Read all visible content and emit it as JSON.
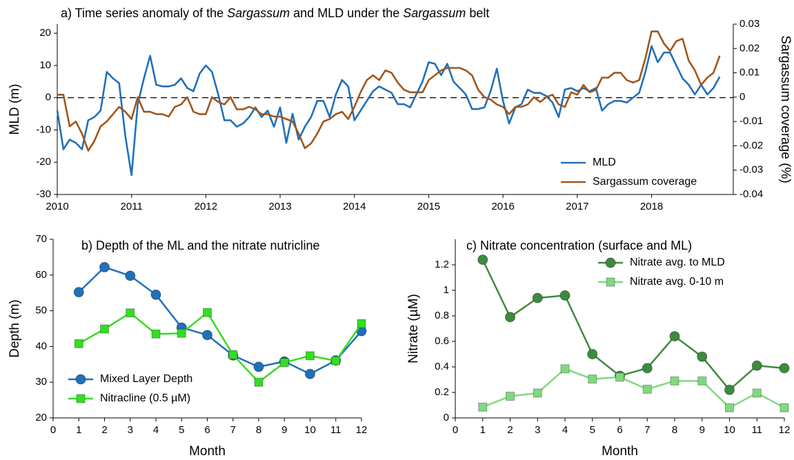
{
  "chart_data": [
    {
      "type": "line",
      "title": [
        "a) Time series anomaly of the ",
        "Sargassum",
        " and MLD under the ",
        "Sargassum",
        " belt"
      ],
      "title_italic": [
        false,
        true,
        false,
        true,
        false
      ],
      "ylabel": "MLD (m)",
      "y2label": "Sargassum coverage (%)",
      "x": [
        2010,
        2010.083,
        2010.167,
        2010.25,
        2010.333,
        2010.417,
        2010.5,
        2010.583,
        2010.667,
        2010.75,
        2010.833,
        2010.917,
        2011,
        2011.083,
        2011.167,
        2011.25,
        2011.333,
        2011.417,
        2011.5,
        2011.583,
        2011.667,
        2011.75,
        2011.833,
        2011.917,
        2012,
        2012.083,
        2012.167,
        2012.25,
        2012.333,
        2012.417,
        2012.5,
        2012.583,
        2012.667,
        2012.75,
        2012.833,
        2012.917,
        2013,
        2013.083,
        2013.167,
        2013.25,
        2013.333,
        2013.417,
        2013.5,
        2013.583,
        2013.667,
        2013.75,
        2013.833,
        2013.917,
        2014,
        2014.083,
        2014.167,
        2014.25,
        2014.333,
        2014.417,
        2014.5,
        2014.583,
        2014.667,
        2014.75,
        2014.833,
        2014.917,
        2015,
        2015.083,
        2015.167,
        2015.25,
        2015.333,
        2015.417,
        2015.5,
        2015.583,
        2015.667,
        2015.75,
        2015.833,
        2015.917,
        2016,
        2016.083,
        2016.167,
        2016.25,
        2016.333,
        2016.417,
        2016.5,
        2016.583,
        2016.667,
        2016.75,
        2016.833,
        2016.917,
        2017,
        2017.083,
        2017.167,
        2017.25,
        2017.333,
        2017.417,
        2017.5,
        2017.583,
        2017.667,
        2017.75,
        2017.833,
        2017.917,
        2018,
        2018.083,
        2018.167,
        2018.25,
        2018.333,
        2018.417,
        2018.5,
        2018.583,
        2018.667,
        2018.75,
        2018.833,
        2018.917
      ],
      "series": [
        {
          "name": "MLD",
          "color": "#1f70bb",
          "values": [
            -4,
            -16,
            -13,
            -14,
            -16,
            -7,
            -6,
            -4,
            8,
            6,
            4.5,
            -12,
            -24,
            -2,
            6,
            13,
            4,
            3.5,
            3.5,
            4,
            6,
            3,
            2,
            7.5,
            10,
            8,
            1,
            -7,
            -7,
            -9,
            -8,
            -6,
            -3,
            -6,
            -4,
            -9,
            -3,
            -14,
            -5,
            -13,
            -9,
            -6,
            -1,
            -1,
            -6,
            1,
            5.5,
            3.5,
            -7,
            -4,
            -1,
            2,
            3.5,
            2.5,
            1.5,
            -2,
            -2,
            -3,
            1,
            5,
            11,
            10.5,
            7,
            10.5,
            5,
            3,
            1,
            -3.5,
            -3.5,
            -3,
            2,
            9,
            -1,
            -8,
            -3,
            -2,
            2.5,
            1.5,
            1.5,
            0.5,
            -1.5,
            -6,
            2.5,
            3,
            2,
            3,
            2,
            3,
            -4,
            -2,
            -1,
            -1,
            -1.5,
            0,
            1.5,
            8,
            16,
            11,
            14,
            14,
            10,
            6,
            4,
            1,
            4,
            1,
            3,
            6.5
          ]
        },
        {
          "name": "Sargassum coverage",
          "color": "#a0561c",
          "axis": "y2",
          "values": [
            0.001,
            0.001,
            -0.012,
            -0.01,
            -0.015,
            -0.022,
            -0.018,
            -0.012,
            -0.01,
            -0.007,
            -0.004,
            -0.006,
            -0.009,
            0,
            -0.006,
            -0.006,
            -0.007,
            -0.007,
            -0.008,
            -0.004,
            -0.003,
            0,
            -0.006,
            -0.007,
            -0.007,
            0,
            -0.002,
            -0.003,
            0,
            -0.005,
            -0.005,
            -0.004,
            -0.005,
            -0.007,
            -0.007,
            -0.008,
            -0.008,
            -0.009,
            -0.01,
            -0.015,
            -0.021,
            -0.019,
            -0.015,
            -0.01,
            -0.009,
            -0.007,
            -0.006,
            -0.009,
            -0.004,
            0.002,
            0.007,
            0.009,
            0.007,
            0.011,
            0.01,
            0.006,
            0.003,
            0.002,
            0.002,
            0.002,
            0.007,
            0.009,
            0.011,
            0.012,
            0.012,
            0.012,
            0.011,
            0.009,
            0.003,
            0,
            -0.001,
            -0.003,
            -0.004,
            -0.007,
            -0.004,
            -0.004,
            -0.003,
            0,
            -0.002,
            0,
            0.001,
            -0.003,
            -0.004,
            0.002,
            0.001,
            0.005,
            0.002,
            0.003,
            0.008,
            0.008,
            0.01,
            0.01,
            0.007,
            0.006,
            0.007,
            0.016,
            0.027,
            0.027,
            0.022,
            0.019,
            0.023,
            0.024,
            0.015,
            0.011,
            0.005,
            0.008,
            0.01,
            0.017
          ]
        }
      ],
      "xlim": [
        2010,
        2019.1
      ],
      "xticks": [
        2010,
        2011,
        2012,
        2013,
        2014,
        2015,
        2016,
        2017,
        2018
      ],
      "ylim": [
        -30,
        22.8
      ],
      "yticks": [
        -30,
        -20,
        -10,
        0,
        10,
        20
      ],
      "y2lim": [
        -0.04,
        0.03
      ],
      "y2ticks": [
        -0.04,
        -0.03,
        -0.02,
        -0.01,
        0,
        0.01,
        0.02,
        0.03
      ],
      "zero_line": true,
      "legend": "lower right"
    },
    {
      "type": "line",
      "title": [
        "b) Depth of the ML and the nitrate nutricline"
      ],
      "title_italic": [
        false
      ],
      "xlabel": "Month",
      "ylabel": "Depth (m)",
      "x": [
        1,
        2,
        3,
        4,
        5,
        6,
        7,
        8,
        9,
        10,
        11,
        12
      ],
      "series": [
        {
          "name": "Mixed Layer Depth",
          "color": "#1f70bb",
          "marker": "circle",
          "values": [
            55.2,
            62.2,
            59.8,
            54.5,
            45.3,
            43.2,
            37.5,
            34.3,
            35.8,
            32.3,
            36.1,
            44.3
          ]
        },
        {
          "name": "Nitracline (0.5 µM)",
          "color": "#33dd22",
          "marker": "square",
          "values": [
            40.8,
            44.9,
            49.4,
            43.5,
            43.7,
            49.5,
            37.7,
            30.0,
            35.5,
            37.4,
            36.0,
            46.4
          ]
        }
      ],
      "xlim": [
        0,
        12
      ],
      "xticks": [
        0,
        1,
        2,
        3,
        4,
        5,
        6,
        7,
        8,
        9,
        10,
        11,
        12
      ],
      "ylim": [
        20,
        70
      ],
      "yticks": [
        20,
        30,
        40,
        50,
        60,
        70
      ],
      "legend": "lower left"
    },
    {
      "type": "line",
      "title": [
        "c) Nitrate concentration (surface and ML)"
      ],
      "title_italic": [
        false
      ],
      "xlabel": "Month",
      "ylabel": "Nitrate (µM)",
      "x": [
        1,
        2,
        3,
        4,
        5,
        6,
        7,
        8,
        9,
        10,
        11,
        12
      ],
      "series": [
        {
          "name": "Nitrate avg. to MLD",
          "color": "#3d8b3d",
          "marker": "circle",
          "values": [
            1.24,
            0.79,
            0.94,
            0.96,
            0.5,
            0.33,
            0.39,
            0.64,
            0.48,
            0.22,
            0.41,
            0.39
          ]
        },
        {
          "name": "Nitrate avg. 0-10 m",
          "color": "#80d880",
          "marker": "square",
          "values": [
            0.085,
            0.17,
            0.195,
            0.385,
            0.305,
            0.32,
            0.225,
            0.29,
            0.29,
            0.08,
            0.195,
            0.08
          ]
        }
      ],
      "xlim": [
        0,
        12
      ],
      "xticks": [
        0,
        1,
        2,
        3,
        4,
        5,
        6,
        7,
        8,
        9,
        10,
        11,
        12
      ],
      "ylim": [
        0,
        1.4
      ],
      "yticks": [
        0,
        0.2,
        0.4,
        0.6,
        0.8,
        1,
        1.2
      ],
      "legend": "upper right"
    }
  ]
}
